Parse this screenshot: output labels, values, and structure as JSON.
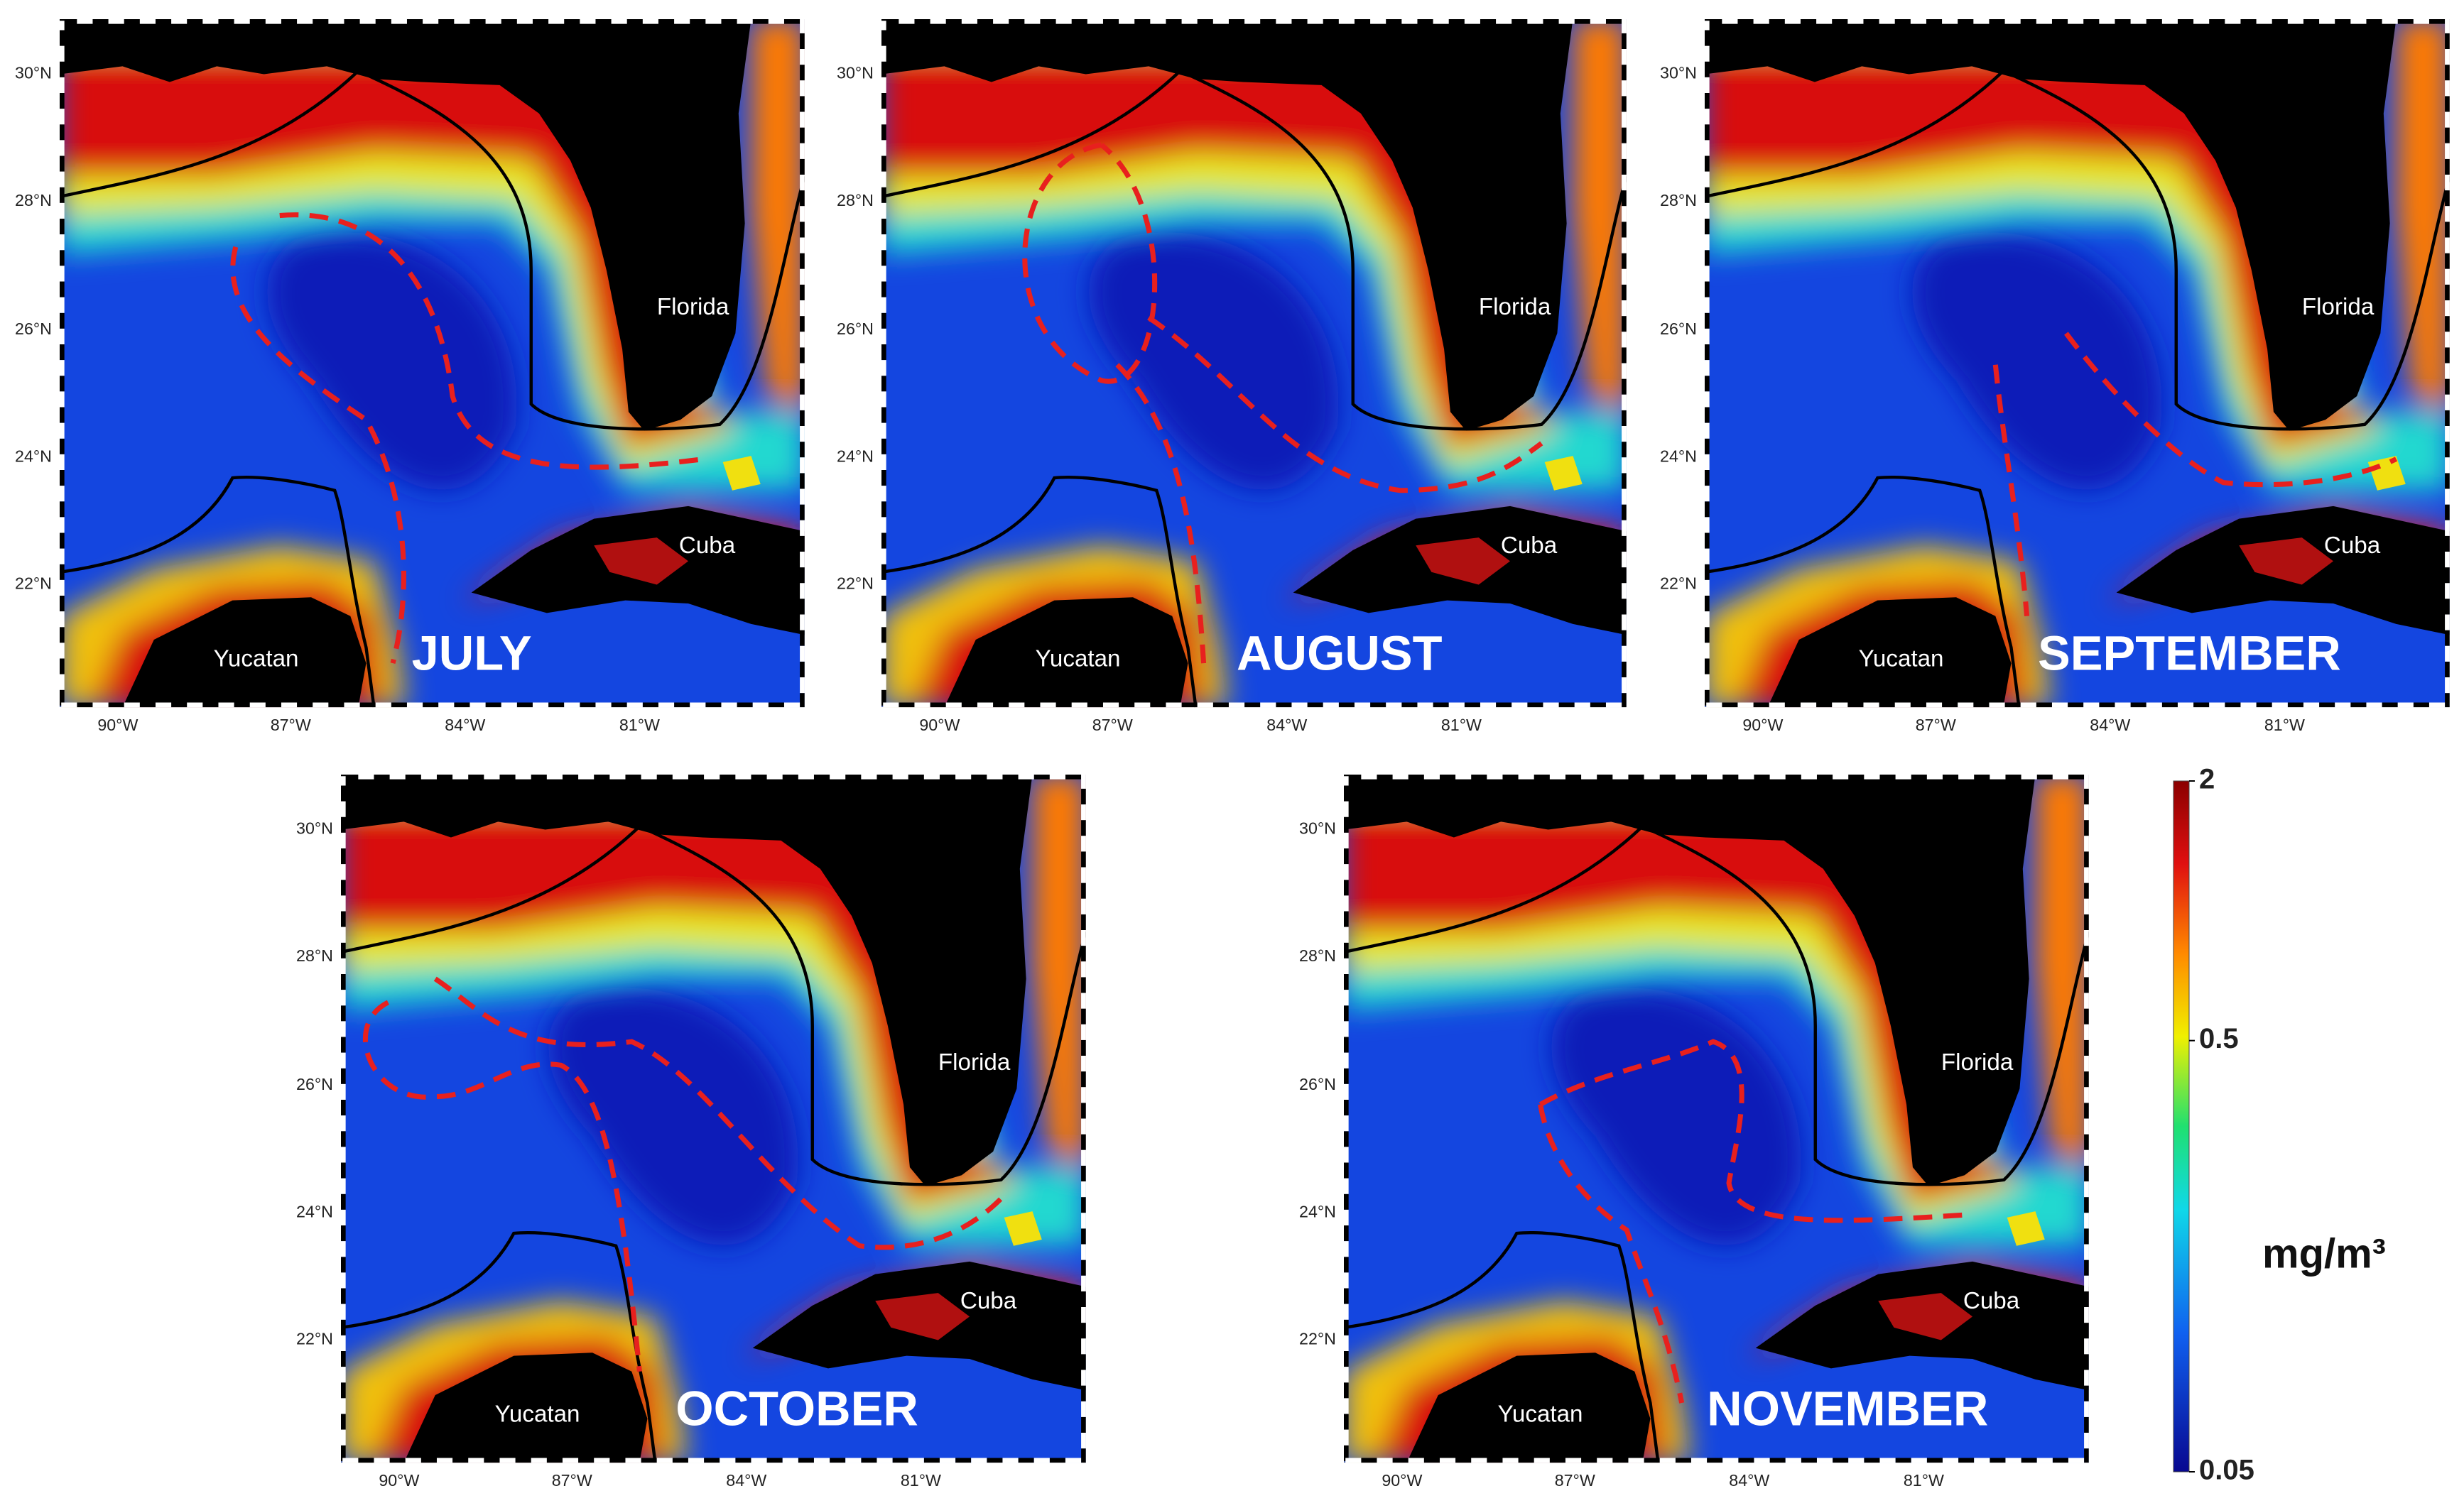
{
  "panels": [
    {
      "month": "JULY"
    },
    {
      "month": "AUGUST"
    },
    {
      "month": "SEPTEMBER"
    },
    {
      "month": "OCTOBER"
    },
    {
      "month": "NOVEMBER"
    }
  ],
  "latitude_labels": [
    "30°N",
    "28°N",
    "26°N",
    "24°N",
    "22°N"
  ],
  "longitude_labels": [
    "90°W",
    "87°W",
    "84°W",
    "81°W"
  ],
  "place_labels": [
    "Florida",
    "Cuba",
    "Yucatan"
  ],
  "colorbar": {
    "unit": "mg/m³",
    "scale": "log",
    "lim": [
      0.05,
      2
    ],
    "ticks": [
      2,
      0.5,
      0.05
    ]
  }
}
